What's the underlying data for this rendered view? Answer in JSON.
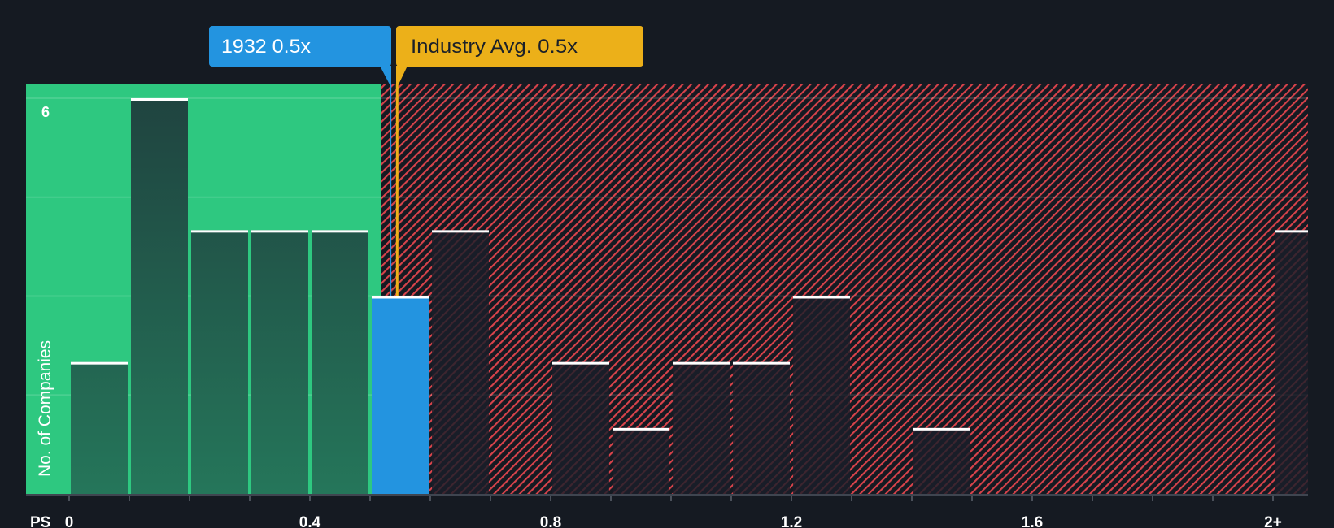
{
  "callouts": {
    "company": {
      "label": "1932 0.5x",
      "color": "#2394e0"
    },
    "industry": {
      "label": "Industry Avg. 0.5x",
      "color": "#ecb019"
    }
  },
  "axes": {
    "y_label": "No. of Companies",
    "y_tick_label": "6",
    "x_label": "PS"
  },
  "colors": {
    "background": "#151a22",
    "undervalued_region": "#2ec880",
    "overvalued_hatch": "#d8434b",
    "company_bar": "#2394e0",
    "industry_marker": "#ecb019",
    "bar_cap": "#ffffff"
  },
  "chart_data": {
    "type": "bar",
    "title": "",
    "xlabel": "PS",
    "ylabel": "No. of Companies",
    "categories": [
      "0-0.1",
      "0.1-0.2",
      "0.2-0.3",
      "0.3-0.4",
      "0.4-0.5",
      "0.5-0.6",
      "0.6-0.7",
      "0.7-0.8",
      "0.8-0.9",
      "0.9-1.0",
      "1.0-1.1",
      "1.1-1.2",
      "1.2-1.3",
      "1.3-1.4",
      "1.4-1.5",
      "1.5-1.6",
      "1.6-1.7",
      "1.7-1.8",
      "1.8-1.9",
      "1.9-2.0",
      "2+"
    ],
    "bin_starts": [
      0,
      0.1,
      0.2,
      0.3,
      0.4,
      0.5,
      0.6,
      0.7,
      0.8,
      0.9,
      1.0,
      1.1,
      1.2,
      1.3,
      1.4,
      1.5,
      1.6,
      1.7,
      1.8,
      1.9,
      2.0
    ],
    "values": [
      2,
      6,
      4,
      4,
      4,
      3,
      4,
      0,
      2,
      1,
      2,
      2,
      3,
      0,
      1,
      0,
      0,
      0,
      0,
      0,
      4
    ],
    "highlight_category": "0.5-0.6",
    "company_ps": 0.5,
    "industry_avg_ps": 0.5,
    "company_marker_x": 0.534,
    "industry_marker_x": 0.545,
    "undervalued_region_end": 0.518,
    "xlim": [
      0,
      2.0
    ],
    "ylim": [
      0,
      6
    ],
    "x_tick_values": [
      0,
      0.4,
      0.8,
      1.2,
      1.6,
      2.0
    ],
    "x_tick_labels": [
      "0",
      "0.4",
      "0.8",
      "1.2",
      "1.6",
      "2+"
    ],
    "y_tick_values": [
      6
    ],
    "y_tick_labels": [
      "6"
    ],
    "gridlines": [
      1.5,
      3,
      4.5,
      6
    ],
    "grid": true,
    "legend": [
      {
        "label": "1932 0.5x",
        "color": "#2394e0"
      },
      {
        "label": "Industry Avg. 0.5x",
        "color": "#ecb019"
      }
    ]
  }
}
